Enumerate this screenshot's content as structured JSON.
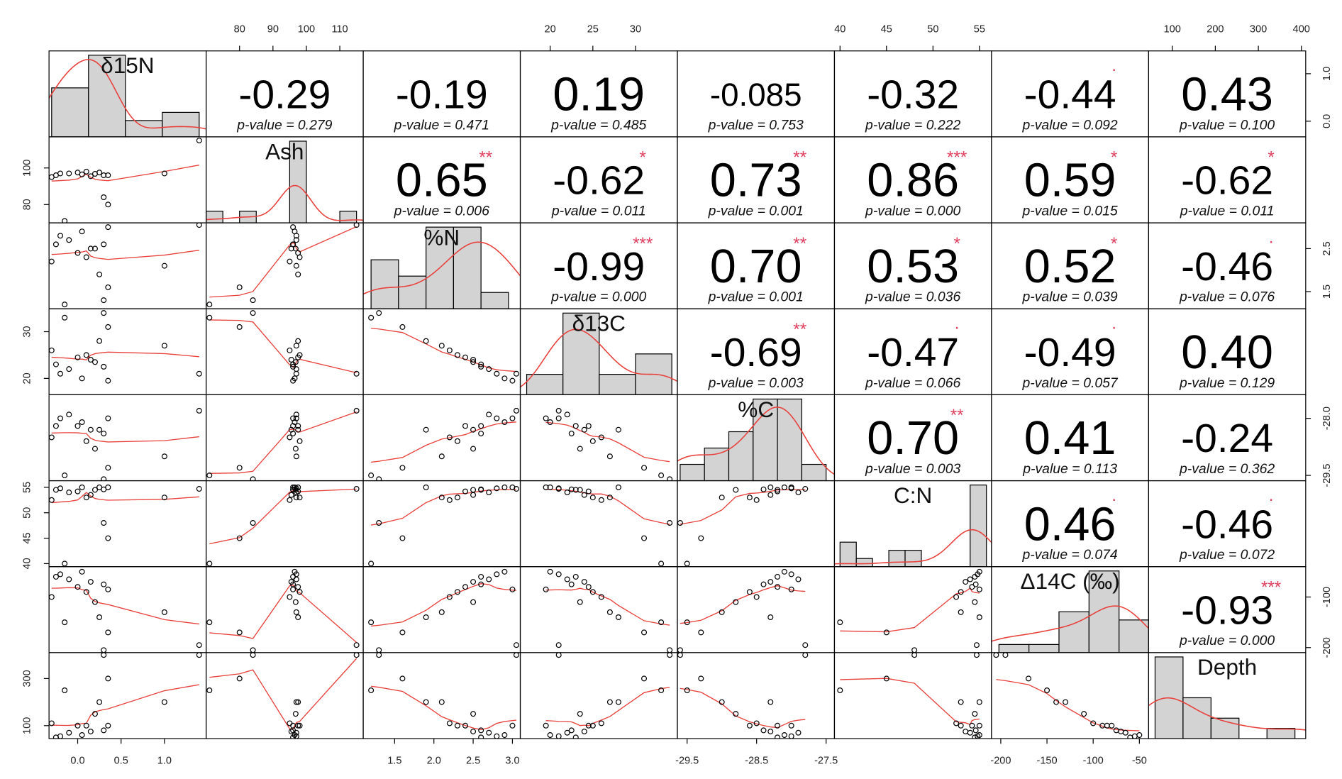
{
  "variables": [
    {
      "name": "δ15N",
      "lim": [
        -0.33,
        1.48
      ],
      "xticks": [
        {
          "value": 0,
          "label": "0.0"
        },
        {
          "value": 0.5,
          "label": "0.5"
        },
        {
          "value": 1,
          "label": "1.0"
        }
      ],
      "yticks": [
        {
          "value": 0,
          "label": "0.0"
        },
        {
          "value": 1,
          "label": "1.0"
        }
      ],
      "values": [
        -0.25,
        -0.2,
        0.05,
        -0.1,
        0.15,
        0.3,
        0,
        0.1,
        0.35,
        -0.3,
        0.2,
        1,
        0.25,
        -0.15,
        0.35,
        1.4,
        0.3
      ],
      "hist": {
        "bins": [
          -0.3,
          0.125,
          0.55,
          0.975,
          1.4
        ],
        "counts": [
          6,
          10,
          2,
          3
        ]
      }
    },
    {
      "name": "Ash",
      "lim": [
        70,
        117
      ],
      "xticks": [
        80,
        90,
        100,
        110
      ],
      "yticks": [
        80,
        100
      ],
      "values": [
        96,
        97,
        96.5,
        97,
        95.5,
        96,
        97.5,
        98,
        96,
        95,
        96.8,
        97,
        97.5,
        71,
        80,
        115,
        84
      ],
      "hist": {
        "bins": [
          70,
          75,
          80,
          85,
          90,
          95,
          100,
          105,
          110,
          115
        ],
        "counts": [
          1,
          0,
          1,
          0,
          0,
          7,
          0,
          0,
          1
        ]
      }
    },
    {
      "name": "%N",
      "lim": [
        1.1,
        3.1
      ],
      "xticks": [
        1.5,
        {
          "value": 2,
          "label": "2.0"
        },
        2.5,
        {
          "value": 3,
          "label": "3.0"
        }
      ],
      "yticks": [
        1.5,
        2.5
      ],
      "values": [
        2.6,
        2.8,
        2.9,
        2.7,
        2.5,
        2.6,
        2.4,
        2.3,
        3,
        2.2,
        2.5,
        2.1,
        1.9,
        1.2,
        1.6,
        3.05,
        1.3
      ],
      "hist": {
        "bins": [
          1.2,
          1.55,
          1.9,
          2.25,
          2.6,
          2.95
        ],
        "counts": [
          3,
          2,
          5,
          5,
          1
        ]
      }
    },
    {
      "name": "δ13C",
      "lim": [
        16.5,
        34.9
      ],
      "xticks": [
        20,
        25,
        30
      ],
      "yticks": [
        20,
        30
      ],
      "values": [
        23,
        21,
        20,
        22,
        24,
        22.5,
        24.5,
        25,
        19.5,
        26,
        23.5,
        27,
        28,
        33,
        31,
        21,
        34
      ],
      "hist": {
        "bins": [
          17.25,
          21.5,
          25.75,
          30,
          34.25
        ],
        "counts": [
          1,
          4,
          1,
          2
        ]
      }
    },
    {
      "name": "%C",
      "lim": [
        -29.64,
        -27.38
      ],
      "xticks": [
        -29.5,
        -28.5,
        -27.5
      ],
      "yticks": [
        {
          "value": -28,
          "label": "-28.0"
        },
        -29.5
      ],
      "values": [
        -28.2,
        -28,
        -28.1,
        -27.9,
        -28.3,
        -28.4,
        -28.2,
        -28.6,
        -28,
        -28.5,
        -28.8,
        -29,
        -28.3,
        -29.5,
        -29.3,
        -27.8,
        -29.6
      ],
      "hist": {
        "bins": [
          -29.6,
          -29.25,
          -28.9,
          -28.55,
          -28.2,
          -27.85,
          -27.5
        ],
        "counts": [
          1,
          2,
          3,
          5,
          5,
          1
        ]
      }
    },
    {
      "name": "C:N",
      "lim": [
        39.4,
        56.3
      ],
      "xticks": [
        40,
        45,
        50,
        55
      ],
      "yticks": [
        40,
        45,
        50,
        55
      ],
      "values": [
        54.5,
        54.8,
        55,
        54,
        53.5,
        54.6,
        54.2,
        53,
        55,
        52.5,
        54.5,
        53,
        55,
        40,
        45,
        54.7,
        48
      ],
      "hist": {
        "bins": [
          40,
          41.75,
          43.5,
          45.25,
          47,
          48.75,
          50.5,
          52.25,
          54,
          55.75
        ],
        "counts": [
          3,
          1,
          0,
          2,
          2,
          0,
          0,
          0,
          10
        ]
      }
    },
    {
      "name": "Δ14C (‰)",
      "lim": [
        -210,
        -40
      ],
      "xticks": [
        -200,
        -150,
        -100,
        -50
      ],
      "yticks": [
        -100,
        -200
      ],
      "values": [
        -60,
        -55,
        -50,
        -65,
        -70,
        -75,
        -80,
        -90,
        -85,
        -100,
        -110,
        -130,
        -140,
        -150,
        -170,
        -195,
        -205
      ],
      "hist": {
        "bins": [
          -202,
          -169.5,
          -137,
          -104.5,
          -72,
          -39.5
        ],
        "counts": [
          1,
          1,
          5,
          10,
          4
        ]
      }
    },
    {
      "name": "Depth",
      "lim": [
        45,
        410
      ],
      "xticks": [
        100,
        200,
        300,
        400
      ],
      "yticks": [
        100,
        300
      ],
      "values": [
        50,
        55,
        60,
        70,
        75,
        80,
        100,
        100,
        100,
        110,
        150,
        200,
        200,
        250,
        300,
        400,
        400
      ],
      "hist": {
        "bins": [
          60,
          125,
          190,
          255,
          320,
          385
        ],
        "counts": [
          8,
          4,
          2,
          0,
          1
        ]
      }
    }
  ],
  "correlations": [
    [
      {
        "r": -0.29,
        "p": "p-value = 0.279"
      },
      {
        "r": -0.19,
        "p": "p-value = 0.471"
      },
      {
        "r": 0.19,
        "p": "p-value = 0.485"
      },
      {
        "r": -0.085,
        "p": "p-value = 0.753"
      },
      {
        "r": -0.32,
        "p": "p-value = 0.222"
      },
      {
        "r": -0.44,
        "p": "p-value = 0.092",
        "stars": "."
      },
      {
        "r": 0.43,
        "p": "p-value = 0.100"
      }
    ],
    [
      {
        "r": 0.65,
        "p": "p-value = 0.006",
        "stars": "**"
      },
      {
        "r": -0.62,
        "p": "p-value = 0.011",
        "stars": "*"
      },
      {
        "r": 0.73,
        "p": "p-value = 0.001",
        "stars": "**"
      },
      {
        "r": 0.86,
        "p": "p-value = 0.000",
        "stars": "***"
      },
      {
        "r": 0.59,
        "p": "p-value = 0.015",
        "stars": "*"
      },
      {
        "r": -0.62,
        "p": "p-value = 0.011",
        "stars": "*"
      }
    ],
    [
      {
        "r": -0.99,
        "p": "p-value = 0.000",
        "stars": "***"
      },
      {
        "r": 0.7,
        "r_label": "0.70",
        "p": "p-value = 0.001",
        "stars": "**"
      },
      {
        "r": 0.53,
        "p": "p-value = 0.036",
        "stars": "*"
      },
      {
        "r": 0.52,
        "p": "p-value = 0.039",
        "stars": "*"
      },
      {
        "r": -0.46,
        "p": "p-value = 0.076",
        "stars": "."
      }
    ],
    [
      {
        "r": -0.69,
        "p": "p-value = 0.003",
        "stars": "**"
      },
      {
        "r": -0.47,
        "p": "p-value = 0.066",
        "stars": "."
      },
      {
        "r": -0.49,
        "p": "p-value = 0.057",
        "stars": "."
      },
      {
        "r": 0.4,
        "r_label": "0.40",
        "p": "p-value = 0.129"
      }
    ],
    [
      {
        "r": 0.7,
        "r_label": "0.70",
        "p": "p-value = 0.003",
        "stars": "**"
      },
      {
        "r": 0.41,
        "p": "p-value = 0.113"
      },
      {
        "r": -0.24,
        "p": "p-value = 0.362"
      }
    ],
    [
      {
        "r": 0.46,
        "p": "p-value = 0.074",
        "stars": "."
      },
      {
        "r": -0.46,
        "p": "p-value = 0.072",
        "stars": "."
      }
    ],
    [
      {
        "r": -0.93,
        "p": "p-value = 0.000",
        "stars": "***"
      }
    ]
  ]
}
